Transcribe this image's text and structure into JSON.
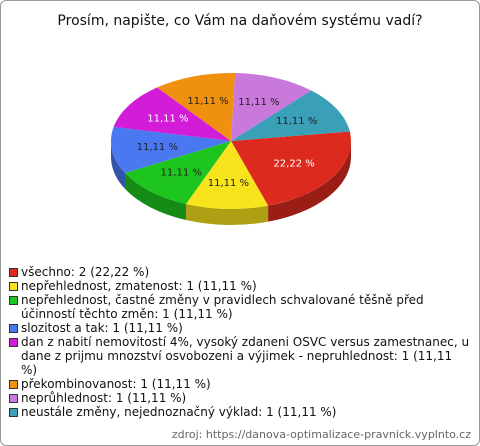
{
  "chart_data": {
    "type": "pie",
    "title": "Prosím, napište, co Vám na daňovém systému vadí?",
    "categories": [
      "všechno: 2 (22,22 %)",
      "nepřehlednost, zmatenost: 1 (11,11 %)",
      "nepřehlednost, častné změny v pravidlech schvalované těšně před účinností těchto změn: 1 (11,11 %)",
      "slozitost a tak: 1 (11,11 %)",
      "dan z nabití nemovitostí 4%, vysoký zdaneni OSVC versus zamestnanec, u dane z prijmu mnozství osvobozeni a výjimek - nepruhlednost: 1 (11,11 %)",
      "překombinovanost: 1 (11,11 %)",
      "neprůhlednost: 1 (11,11 %)",
      "neustále změny, nejednoznačný výklad: 1 (11,11 %)"
    ],
    "values": [
      22.22,
      11.11,
      11.11,
      11.11,
      11.11,
      11.11,
      11.11,
      11.11
    ],
    "value_labels": [
      "22,22 %",
      "11,11 %",
      "11,11 %",
      "11,11 %",
      "11,11 %",
      "11,11 %",
      "11,11 %",
      "11,11 %"
    ],
    "colors": [
      "#dc2a1f",
      "#f7e41c",
      "#1ec51e",
      "#4a78f0",
      "#d21cd8",
      "#f0900f",
      "#c978dc",
      "#3aa0b8"
    ],
    "legend": "bottom",
    "source": "zdroj: https://danova-optimalizace-pravnick.vyplnto.cz"
  }
}
